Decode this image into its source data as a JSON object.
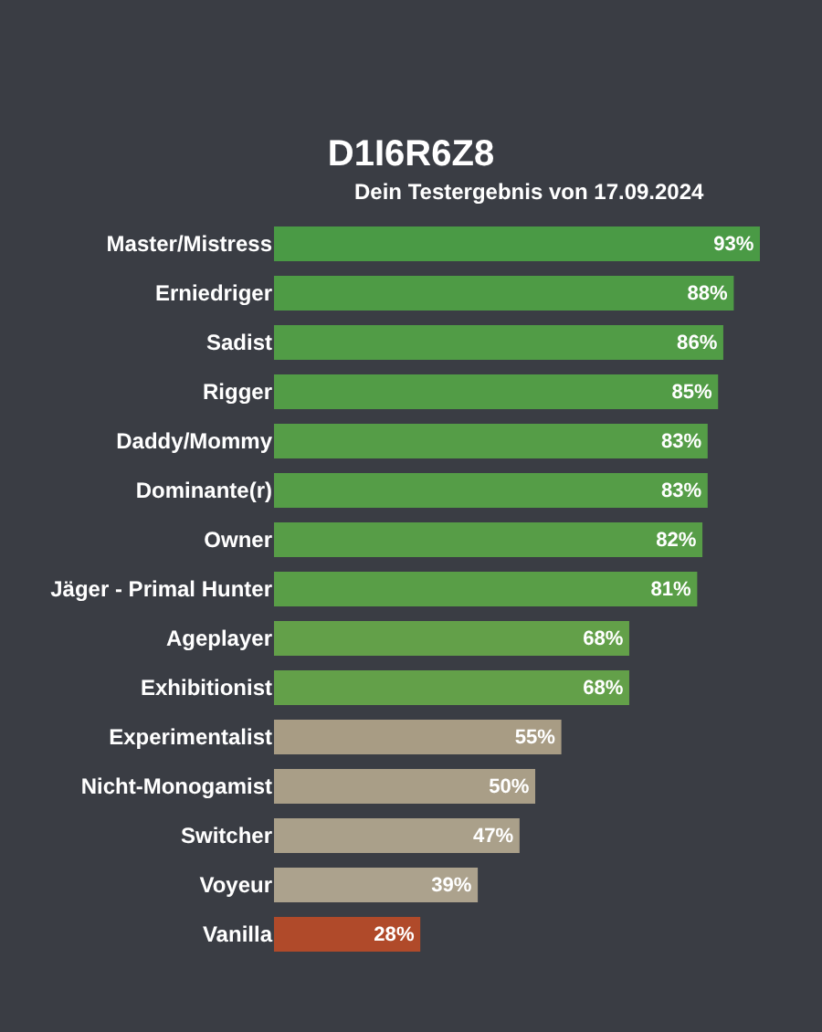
{
  "chart_data": {
    "type": "bar",
    "orientation": "horizontal",
    "title": "D1I6R6Z8",
    "subtitle": "Dein Testergebnis von 17.09.2024",
    "categories": [
      "Master/Mistress",
      "Erniedriger",
      "Sadist",
      "Rigger",
      "Daddy/Mommy",
      "Dominante(r)",
      "Owner",
      "Jäger - Primal Hunter",
      "Ageplayer",
      "Exhibitionist",
      "Experimentalist",
      "Nicht-Monogamist",
      "Switcher",
      "Voyeur",
      "Vanilla"
    ],
    "values": [
      93,
      88,
      86,
      85,
      83,
      83,
      82,
      81,
      68,
      68,
      55,
      50,
      47,
      39,
      28
    ],
    "value_labels": [
      "93%",
      "88%",
      "86%",
      "85%",
      "83%",
      "83%",
      "82%",
      "81%",
      "68%",
      "68%",
      "55%",
      "50%",
      "47%",
      "39%",
      "28%"
    ],
    "colors": [
      "#4a9a45",
      "#4e9b45",
      "#519c46",
      "#529c46",
      "#559d47",
      "#559d47",
      "#579d47",
      "#599e47",
      "#63a049",
      "#63a049",
      "#a89c84",
      "#a99e87",
      "#aaa08a",
      "#aca28d",
      "#b04a2a"
    ],
    "legend": false,
    "tick_labels": "y"
  }
}
